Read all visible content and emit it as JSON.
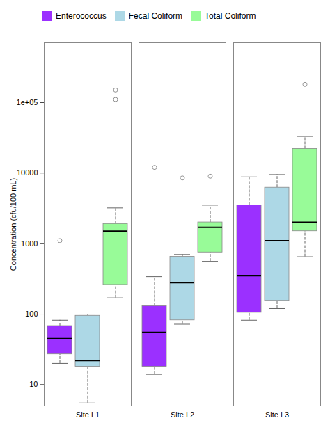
{
  "chart_data": {
    "type": "box",
    "categories": [
      "Site L1",
      "Site L2",
      "Site L3"
    ],
    "series": [
      {
        "name": "Enterococcus",
        "color": "#9B30FF",
        "q1": [
          27,
          18,
          105
        ],
        "median": [
          45,
          55,
          350
        ],
        "q3": [
          68,
          130,
          3500
        ],
        "whislo": [
          20,
          14,
          82
        ],
        "whishi": [
          82,
          340,
          8800
        ],
        "fliers": [
          [
            1100
          ],
          [
            12000
          ],
          []
        ]
      },
      {
        "name": "Fecal Coliform",
        "color": "#ADD8E6",
        "q1": [
          18,
          82,
          155
        ],
        "median": [
          22,
          280,
          1100
        ],
        "q3": [
          95,
          650,
          6200
        ],
        "whislo": [
          5.5,
          72,
          120
        ],
        "whishi": [
          100,
          700,
          9500
        ],
        "fliers": [
          [],
          [
            8500
          ],
          []
        ]
      },
      {
        "name": "Total Coliform",
        "color": "#98FB98",
        "q1": [
          260,
          750,
          1500
        ],
        "median": [
          1500,
          1700,
          2000
        ],
        "q3": [
          1900,
          2000,
          22000
        ],
        "whislo": [
          170,
          560,
          650
        ],
        "whishi": [
          3200,
          3500,
          33000
        ],
        "fliers": [
          [
            110000,
            150000
          ],
          [
            9000
          ],
          [
            180000
          ]
        ]
      }
    ],
    "ylabel": "Concentration (cfu/100 mL)",
    "ylim": [
      5,
      700000
    ],
    "yticks": [
      10,
      100,
      1000,
      10000,
      {
        "value": 100000,
        "label": "1e+05"
      }
    ],
    "log": "y",
    "legend": "upper left",
    "grid": false
  }
}
